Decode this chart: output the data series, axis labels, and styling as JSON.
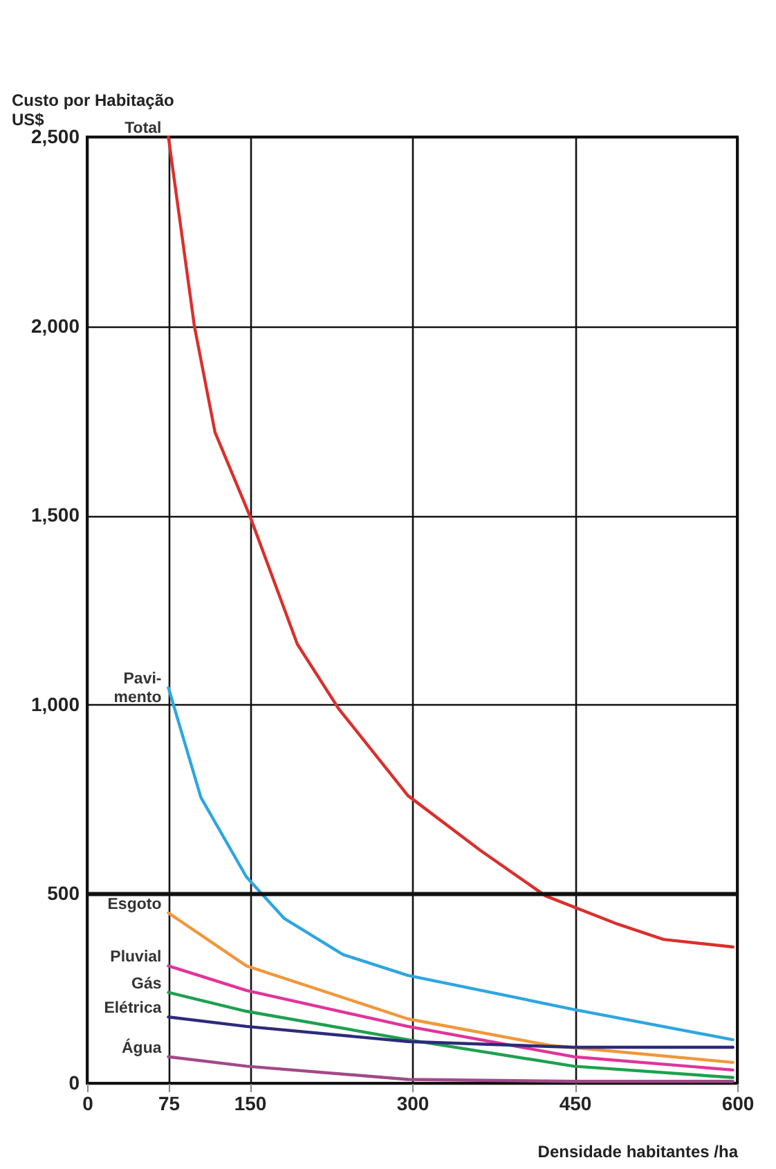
{
  "chart_data": {
    "type": "line",
    "xlabel": "Densidade habitantes /ha",
    "ylabel": "Custo por Habitação\nUS$",
    "xlim": [
      0,
      600
    ],
    "ylim": [
      0,
      2500
    ],
    "xticks": [
      0,
      75,
      150,
      300,
      450,
      600
    ],
    "yticks": [
      0,
      500,
      {
        "value": 1000,
        "label": "1,000"
      },
      {
        "value": 1500,
        "label": "1,500"
      },
      {
        "value": 2000,
        "label": "2,000"
      },
      {
        "value": 2500,
        "label": "2,500"
      }
    ],
    "grid": true,
    "ref_lines": [
      {
        "axis": "y",
        "value": 500,
        "color": "#111111"
      }
    ],
    "series": [
      {
        "name": "Total",
        "color": "#d9302c",
        "x": [
          75,
          99,
          118,
          150,
          194,
          232,
          296,
          363,
          423,
          490,
          532,
          596
        ],
        "values": [
          2500,
          2000,
          1720,
          1500,
          1160,
          990,
          760,
          615,
          495,
          420,
          380,
          360
        ]
      },
      {
        "name": "Pavi-\nmento",
        "color": "#2ea6e0",
        "x": [
          75,
          105,
          147,
          182,
          236,
          296,
          449,
          596
        ],
        "values": [
          1045,
          755,
          545,
          435,
          340,
          285,
          195,
          115
        ]
      },
      {
        "name": "Esgoto",
        "color": "#f0983c",
        "x": [
          75,
          147,
          296,
          427,
          596
        ],
        "values": [
          450,
          310,
          170,
          100,
          55
        ]
      },
      {
        "name": "Pluvial",
        "color": "#e0359a",
        "x": [
          75,
          147,
          296,
          449,
          596
        ],
        "values": [
          310,
          245,
          150,
          70,
          35
        ]
      },
      {
        "name": "Gás",
        "color": "#1fa050",
        "x": [
          75,
          147,
          296,
          449,
          596
        ],
        "values": [
          240,
          190,
          115,
          45,
          15
        ]
      },
      {
        "name": "Elétrica",
        "color": "#2e2a7a",
        "x": [
          75,
          147,
          296,
          449,
          596
        ],
        "values": [
          175,
          150,
          110,
          95,
          95
        ]
      },
      {
        "name": "Água",
        "color": "#a04a88",
        "x": [
          75,
          147,
          296,
          449,
          596
        ],
        "values": [
          70,
          45,
          10,
          5,
          5
        ]
      }
    ]
  }
}
